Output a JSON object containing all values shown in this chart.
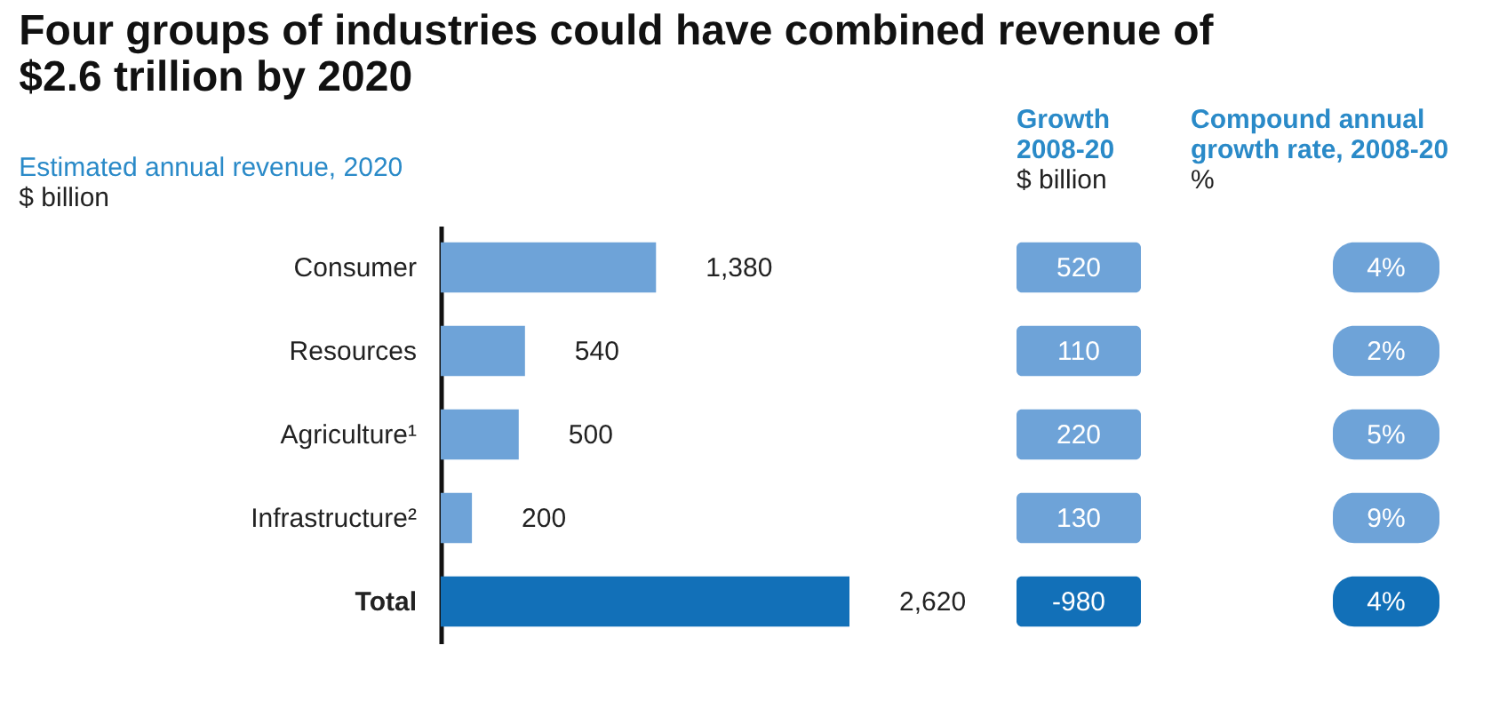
{
  "chart_data": [
    {
      "type": "bar",
      "orientation": "horizontal",
      "title": "Four groups of industries could have combined revenue of\n$2.6 trillion by 2020",
      "subtitle": "Estimated annual revenue, 2020",
      "xlabel": "$ billion",
      "categories": [
        "Consumer",
        "Resources",
        "Agriculture¹",
        "Infrastructure²",
        "Total"
      ],
      "values": [
        1380,
        540,
        500,
        200,
        2620
      ],
      "colors": [
        "#6ea3d8",
        "#6ea3d8",
        "#6ea3d8",
        "#6ea3d8",
        "#1270b8"
      ],
      "value_labels": [
        "1,380",
        "540",
        "500",
        "200",
        "2,620"
      ]
    },
    {
      "type": "other",
      "title": "Growth\n2008-20",
      "subtitle": "$ billion",
      "categories": [
        null,
        null,
        null,
        null,
        null
      ],
      "values": [
        520,
        110,
        220,
        130,
        -980
      ],
      "colors": [
        "#6ea3d8",
        "#6ea3d8",
        "#6ea3d8",
        "#6ea3d8",
        "#1270b8"
      ],
      "data_labels": true
    },
    {
      "type": "other",
      "title": "Compound annual\ngrowth rate, 2008-20",
      "subtitle": "%",
      "categories": [
        null,
        null,
        null,
        null,
        null
      ],
      "values": [
        4,
        2,
        5,
        9,
        4
      ],
      "colors": [
        "#6ea3d8",
        "#6ea3d8",
        "#6ea3d8",
        "#6ea3d8",
        "#1270b8"
      ],
      "value_labels": [
        "4%",
        "2%",
        "5%",
        "9%",
        "4%"
      ]
    }
  ]
}
